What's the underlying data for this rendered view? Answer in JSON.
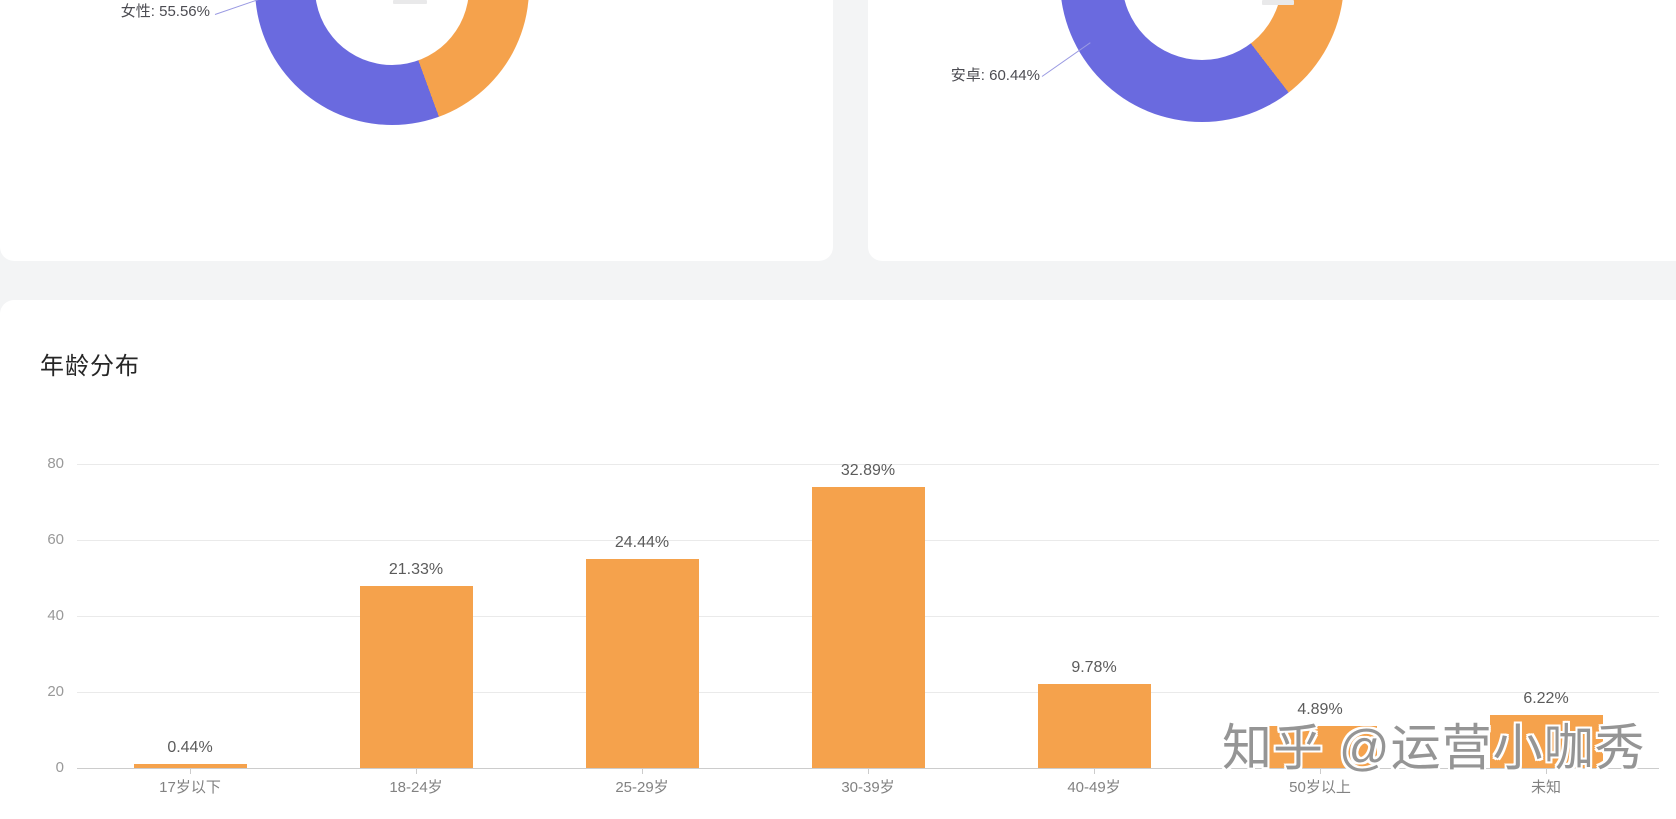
{
  "colors": {
    "purple": "#6A6ADF",
    "orange": "#F5A24C",
    "card": "#ffffff",
    "page_background": "#f3f4f5",
    "grid": "#eaeaea",
    "axis": "#cccccc",
    "ytick_label": "#999999",
    "category_label": "#828282",
    "value_label": "#5b5b5b",
    "title": "#262626",
    "donut_label": "#4c4c52",
    "leader_line": "#9a9ae2",
    "watermark": "#8c8c8c"
  },
  "watermark": {
    "text": "知乎 @运营小咖秀"
  },
  "chart_data": [
    {
      "type": "pie",
      "subtype": "donut",
      "name": "gender-distribution-donut",
      "start": "top",
      "direction": "clockwise",
      "segments": [
        {
          "label": "",
          "value_pct": 44.44,
          "color_key": "orange"
        },
        {
          "label": "女性",
          "value_pct": 55.56,
          "color_key": "purple"
        }
      ],
      "callout": {
        "text": "女性: 55.56%",
        "points_to_color_key": "purple"
      },
      "legend": null,
      "note_top_cut_off": true
    },
    {
      "type": "pie",
      "subtype": "donut",
      "name": "platform-distribution-donut",
      "start": "top",
      "direction": "clockwise",
      "segments": [
        {
          "label": "",
          "value_pct": 39.56,
          "color_key": "orange"
        },
        {
          "label": "安卓",
          "value_pct": 60.44,
          "color_key": "purple"
        }
      ],
      "callout": {
        "text": "安卓: 60.44%",
        "points_to_color_key": "purple"
      },
      "legend": null,
      "note_top_cut_off": true
    },
    {
      "type": "bar",
      "title": "年龄分布",
      "categories": [
        "17岁以下",
        "18-24岁",
        "25-29岁",
        "30-39岁",
        "40-49岁",
        "50岁以上",
        "未知"
      ],
      "labels": [
        "0.44%",
        "21.33%",
        "24.44%",
        "32.89%",
        "9.78%",
        "4.89%",
        "6.22%"
      ],
      "values_axis_units": [
        1,
        48,
        55,
        74,
        22,
        11,
        14
      ],
      "xlabel": "",
      "ylabel": "",
      "ylim": [
        0,
        80
      ],
      "yticks": [
        0,
        20,
        40,
        60,
        80
      ],
      "grid": true,
      "legend": null,
      "bar_color_key": "orange"
    }
  ]
}
